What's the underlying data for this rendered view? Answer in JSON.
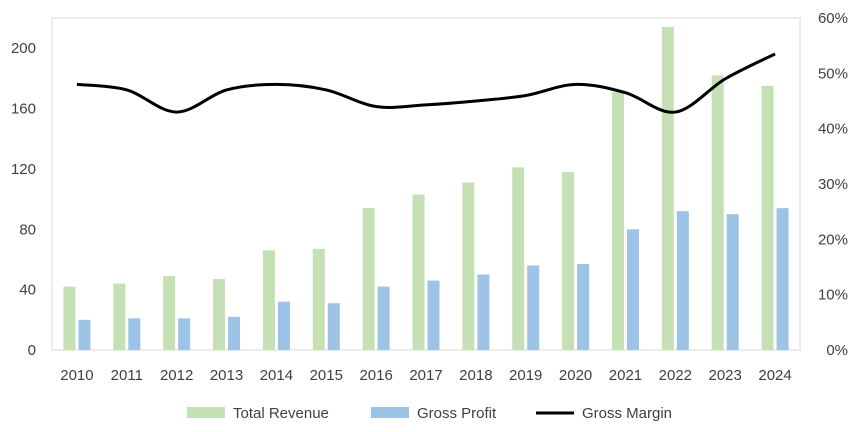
{
  "chart_data": {
    "type": "bar+line",
    "categories": [
      "2010",
      "2011",
      "2012",
      "2013",
      "2014",
      "2015",
      "2016",
      "2017",
      "2018",
      "2019",
      "2020",
      "2021",
      "2022",
      "2023",
      "2024"
    ],
    "series": [
      {
        "name": "Total Revenue",
        "type": "bar",
        "axis": "left",
        "color": "#c5e0b4",
        "values": [
          42,
          44,
          49,
          47,
          66,
          67,
          94,
          103,
          111,
          121,
          118,
          171,
          214,
          182,
          175
        ]
      },
      {
        "name": "Gross Profit",
        "type": "bar",
        "axis": "left",
        "color": "#9dc3e6",
        "values": [
          20,
          21,
          21,
          22,
          32,
          31,
          42,
          46,
          50,
          56,
          57,
          80,
          92,
          90,
          94
        ]
      },
      {
        "name": "Gross Margin",
        "type": "line",
        "axis": "right",
        "color": "#000000",
        "values": [
          0.48,
          0.47,
          0.43,
          0.47,
          0.48,
          0.47,
          0.44,
          0.443,
          0.45,
          0.46,
          0.48,
          0.465,
          0.43,
          0.49,
          0.535
        ]
      }
    ],
    "y_left": {
      "min": 0,
      "max": 220,
      "ticks": [
        0,
        40,
        80,
        120,
        160,
        200
      ],
      "tick_labels": [
        "0",
        "40",
        "80",
        "120",
        "160",
        "200"
      ]
    },
    "y_right": {
      "min": 0,
      "max": 0.6,
      "ticks": [
        0,
        0.1,
        0.2,
        0.3,
        0.4,
        0.5,
        0.6
      ],
      "tick_labels": [
        "0%",
        "10%",
        "20%",
        "30%",
        "40%",
        "50%",
        "60%"
      ]
    },
    "title": "",
    "xlabel": "",
    "ylabel": "",
    "grid": false,
    "legend_position": "bottom"
  }
}
